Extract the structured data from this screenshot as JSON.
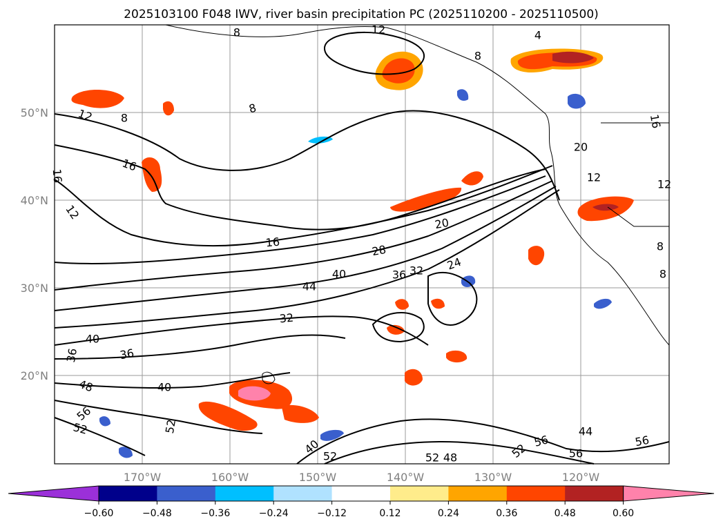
{
  "title": "2025103100 F048 IWV, river basin precipitation PC (2025110200 - 2025110500)",
  "map": {
    "lat_ticks": [
      "50°N",
      "40°N",
      "30°N",
      "20°N"
    ],
    "lon_ticks": [
      "170°W",
      "160°W",
      "150°W",
      "140°W",
      "130°W",
      "120°W"
    ],
    "contour_labels": [
      "4",
      "8",
      "8",
      "12",
      "8",
      "12",
      "16",
      "16",
      "12",
      "16",
      "20",
      "28",
      "40",
      "44",
      "36",
      "32",
      "24",
      "32",
      "40",
      "36",
      "36",
      "40",
      "48",
      "56",
      "52",
      "52",
      "40",
      "52",
      "52",
      "48",
      "52",
      "56",
      "44",
      "56",
      "56",
      "16",
      "12",
      "8",
      "8",
      "8",
      "20",
      "12"
    ]
  },
  "colorbar": {
    "labels": [
      "−0.60",
      "−0.48",
      "−0.36",
      "−0.24",
      "−0.12",
      "0.12",
      "0.24",
      "0.36",
      "0.48",
      "0.60"
    ],
    "colors": [
      "#9b30d9",
      "#00008b",
      "#3a5fcd",
      "#00bfff",
      "#b0e2ff",
      "#ffffff",
      "#ffec8b",
      "#ffa500",
      "#ff4500",
      "#b22222",
      "#ff82ab"
    ]
  }
}
